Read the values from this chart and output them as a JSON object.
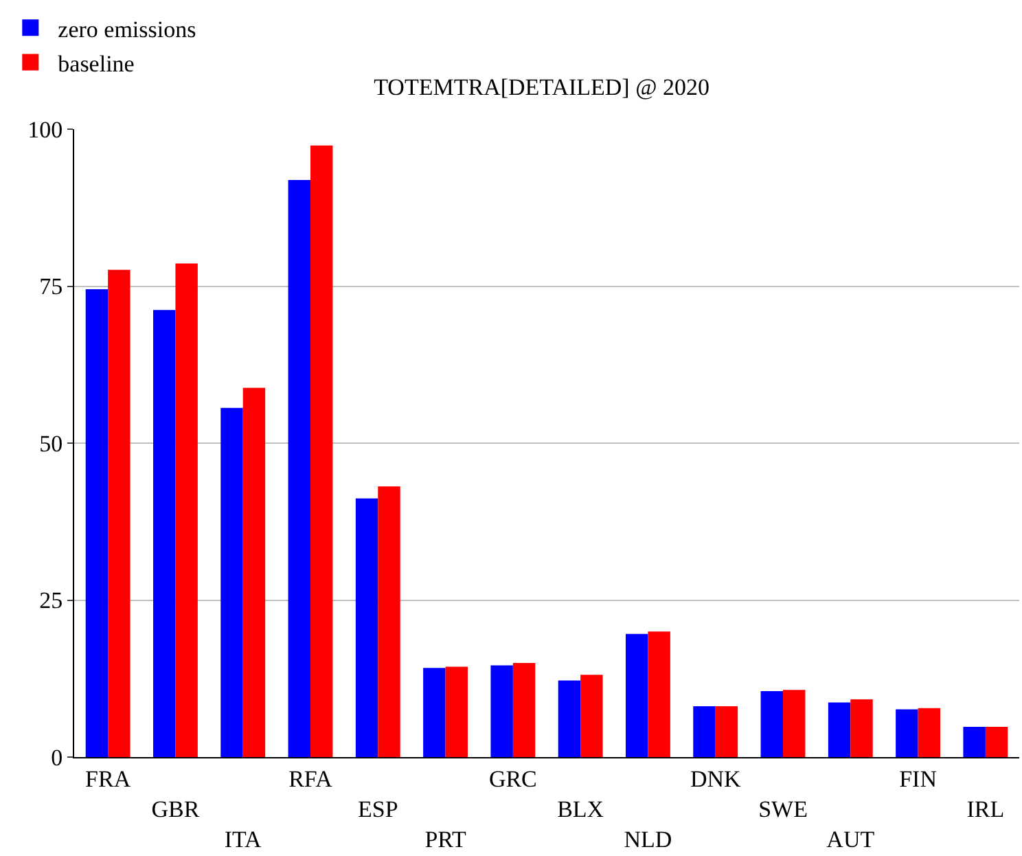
{
  "chart_data": {
    "type": "bar",
    "title": "TOTEMTRA[DETAILED] @ 2020",
    "categories": [
      "FRA",
      "GBR",
      "ITA",
      "RFA",
      "ESP",
      "PRT",
      "GRC",
      "BLX",
      "NLD",
      "DNK",
      "SWE",
      "AUT",
      "FIN",
      "IRL"
    ],
    "series": [
      {
        "name": "zero emissions",
        "color": "#0000ff",
        "values": [
          74.5,
          71.2,
          55.6,
          91.9,
          41.2,
          14.2,
          14.6,
          12.2,
          19.6,
          8.1,
          10.5,
          8.7,
          7.6,
          4.8
        ]
      },
      {
        "name": "baseline",
        "color": "#ff0000",
        "values": [
          77.6,
          78.6,
          58.8,
          97.4,
          43.1,
          14.4,
          15.0,
          13.1,
          20.0,
          8.1,
          10.7,
          9.2,
          7.8,
          4.8
        ]
      }
    ],
    "ylim": [
      0,
      100
    ],
    "yticks": [
      0,
      25,
      50,
      75,
      100
    ],
    "grid": "y",
    "legend": "top"
  }
}
